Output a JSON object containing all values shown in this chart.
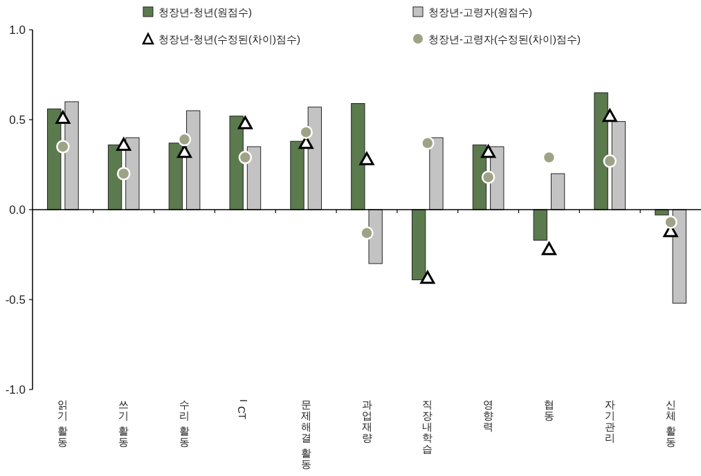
{
  "chart_data": {
    "type": "bar",
    "categories": [
      "읽기 활동",
      "쓰기 활동",
      "수리 활동",
      "ICT",
      "문제해결 활동",
      "과업재량",
      "직장내학습",
      "영향력",
      "협동",
      "자기관리",
      "신체 활동"
    ],
    "series": [
      {
        "name": "청장년-청년(원점수)",
        "color": "#5b7a4e",
        "values": [
          0.56,
          0.36,
          0.37,
          0.52,
          0.38,
          0.59,
          -0.39,
          0.36,
          -0.17,
          0.65,
          -0.03
        ]
      },
      {
        "name": "청장년-고령자(원점수)",
        "color": "#c3c3c3",
        "values": [
          0.6,
          0.4,
          0.55,
          0.35,
          0.57,
          -0.3,
          0.4,
          0.35,
          0.2,
          0.49,
          -0.52
        ]
      },
      {
        "name": "청장년-청년(수정된(차이)점수)",
        "type": "scatter",
        "marker": "triangle",
        "color": "#ffffff",
        "values": [
          0.51,
          0.36,
          0.32,
          0.48,
          0.37,
          0.28,
          -0.38,
          0.32,
          -0.22,
          0.52,
          -0.12
        ]
      },
      {
        "name": "청장년-고령자(수정된(차이)점수)",
        "type": "scatter",
        "marker": "circle",
        "color": "#9fa386",
        "values": [
          0.35,
          0.2,
          0.39,
          0.29,
          0.43,
          -0.13,
          0.37,
          0.18,
          0.29,
          0.27,
          -0.07
        ]
      }
    ],
    "ylim": [
      -1,
      1
    ],
    "yticks": [
      {
        "value": -1,
        "label": "-1.0"
      },
      {
        "value": -0.5,
        "label": "-0.5"
      },
      {
        "value": 0,
        "label": "0.0"
      },
      {
        "value": 0.5,
        "label": "0.5"
      },
      {
        "value": 1,
        "label": "1.0"
      }
    ],
    "legend": "top"
  }
}
